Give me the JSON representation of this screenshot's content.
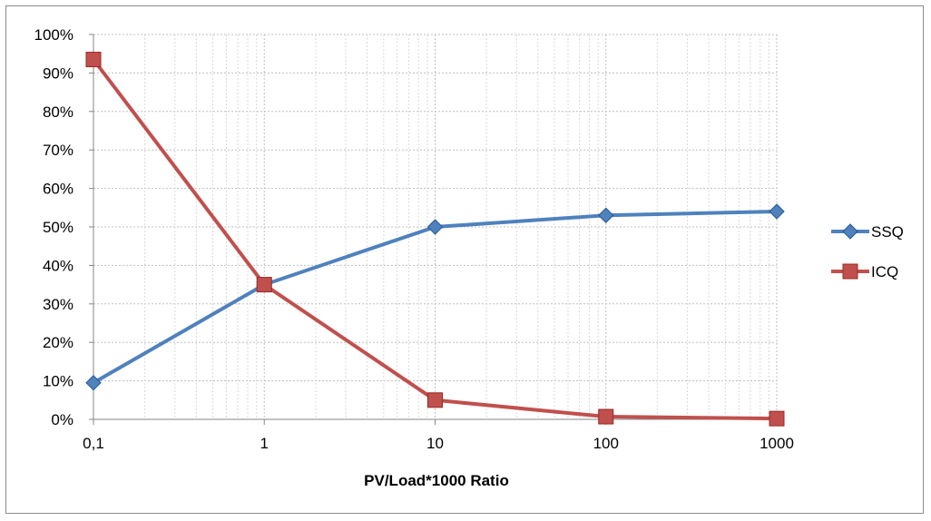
{
  "chart_data": {
    "type": "line",
    "title": "",
    "xlabel": "PV/Load*1000 Ratio",
    "ylabel": "",
    "x_scale": "log",
    "x": [
      0.1,
      1,
      10,
      100,
      1000
    ],
    "x_tick_labels": [
      "0,1",
      "1",
      "10",
      "100",
      "1000"
    ],
    "ylim": [
      0,
      100
    ],
    "y_unit": "%",
    "y_tick_labels": [
      "0%",
      "10%",
      "20%",
      "30%",
      "40%",
      "50%",
      "60%",
      "70%",
      "80%",
      "90%",
      "100%"
    ],
    "grid": true,
    "legend_position": "right",
    "series": [
      {
        "name": "SSQ",
        "marker": "diamond",
        "color": "#4f81bd",
        "values": [
          9.5,
          35,
          50,
          53,
          54
        ]
      },
      {
        "name": "ICQ",
        "marker": "square",
        "color": "#c0504d",
        "values": [
          93.5,
          35,
          5,
          0.7,
          0.2
        ]
      }
    ]
  }
}
